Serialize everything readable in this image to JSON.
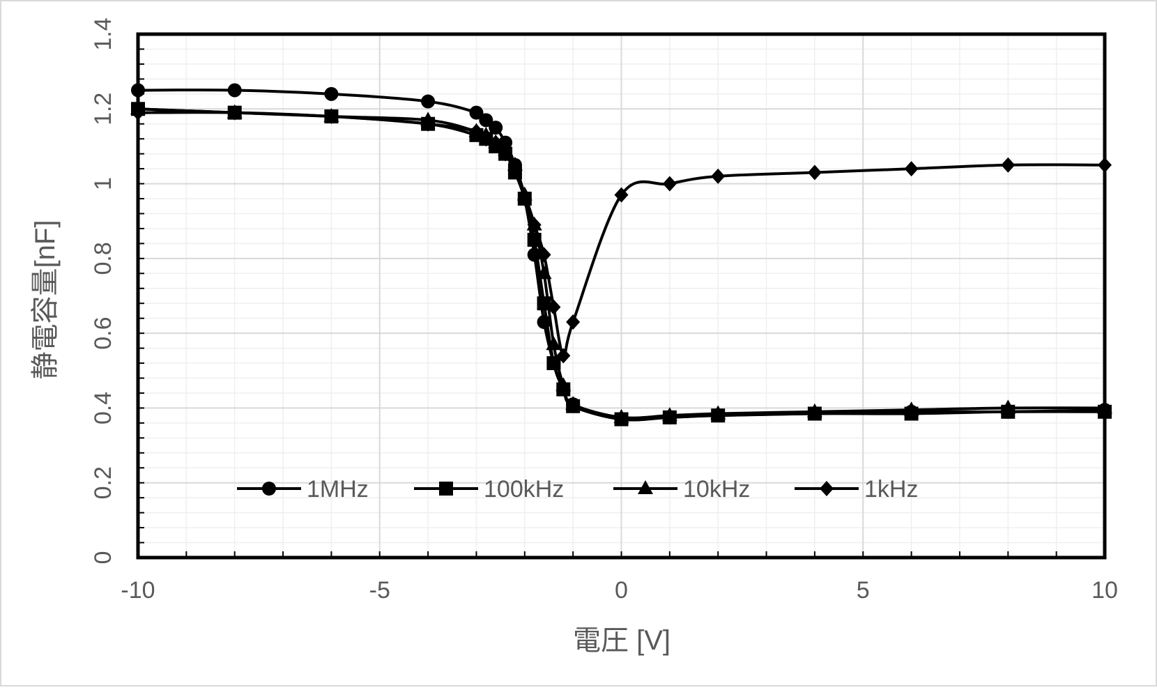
{
  "chart_data": {
    "type": "line",
    "title": "",
    "xlabel": "電圧 [V]",
    "ylabel": "静電容量[nF]",
    "xlim": [
      -10,
      10
    ],
    "ylim": [
      0,
      1.4
    ],
    "x_ticks": [
      -10,
      -5,
      0,
      5,
      10
    ],
    "x_tick_labels": [
      "-10",
      "-5",
      "0",
      "5",
      "10"
    ],
    "y_ticks": [
      0,
      0.2,
      0.4,
      0.6,
      0.8,
      1,
      1.2,
      1.4
    ],
    "y_tick_labels": [
      "0",
      "0.2",
      "0.4",
      "0.6",
      "0.8",
      "1",
      "1.2",
      "1.4"
    ],
    "major_grid": {
      "x_step": 1,
      "y_step": 0.2
    },
    "minor_grid": {
      "x_step": 1,
      "y_step": 0.04
    },
    "legend_position": "bottom-center",
    "series": [
      {
        "name": "1MHz",
        "marker": "circle",
        "x": [
          -10,
          -8,
          -6,
          -4,
          -3,
          -2.8,
          -2.6,
          -2.4,
          -2.2,
          -2,
          -1.8,
          -1.6,
          -1.4,
          -1.2,
          -1,
          0,
          1,
          2,
          4,
          6,
          8,
          10
        ],
        "y": [
          1.25,
          1.25,
          1.24,
          1.22,
          1.19,
          1.17,
          1.15,
          1.11,
          1.05,
          0.96,
          0.81,
          0.63,
          0.52,
          0.45,
          0.41,
          0.37,
          0.375,
          0.38,
          0.385,
          0.39,
          0.39,
          0.395
        ]
      },
      {
        "name": "100kHz",
        "marker": "square",
        "x": [
          -10,
          -8,
          -6,
          -4,
          -3,
          -2.8,
          -2.6,
          -2.4,
          -2.2,
          -2,
          -1.8,
          -1.6,
          -1.4,
          -1.2,
          -1,
          0,
          1,
          2,
          4,
          6,
          8,
          10
        ],
        "y": [
          1.2,
          1.19,
          1.18,
          1.16,
          1.13,
          1.12,
          1.1,
          1.08,
          1.03,
          0.96,
          0.85,
          0.68,
          0.52,
          0.45,
          0.405,
          0.37,
          0.375,
          0.38,
          0.385,
          0.385,
          0.39,
          0.39
        ]
      },
      {
        "name": "10kHz",
        "marker": "triangle",
        "x": [
          -10,
          -8,
          -6,
          -4,
          -3,
          -2.8,
          -2.6,
          -2.4,
          -2.2,
          -2,
          -1.8,
          -1.6,
          -1.4,
          -1.2,
          -1,
          0,
          1,
          2,
          4,
          6,
          8,
          10
        ],
        "y": [
          1.2,
          1.19,
          1.18,
          1.17,
          1.14,
          1.13,
          1.11,
          1.09,
          1.05,
          0.97,
          0.89,
          0.76,
          0.57,
          0.46,
          0.41,
          0.375,
          0.38,
          0.385,
          0.39,
          0.395,
          0.4,
          0.4
        ]
      },
      {
        "name": "1kHz",
        "marker": "diamond",
        "x": [
          -10,
          -8,
          -6,
          -4,
          -3,
          -2.8,
          -2.6,
          -2.4,
          -2.2,
          -2,
          -1.8,
          -1.6,
          -1.4,
          -1.2,
          -1,
          0,
          1,
          2,
          4,
          6,
          8,
          10
        ],
        "y": [
          1.19,
          1.19,
          1.18,
          1.16,
          1.14,
          1.12,
          1.11,
          1.08,
          1.04,
          0.96,
          0.89,
          0.81,
          0.67,
          0.54,
          0.63,
          0.97,
          1.0,
          1.02,
          1.03,
          1.04,
          1.05,
          1.05
        ]
      }
    ]
  }
}
